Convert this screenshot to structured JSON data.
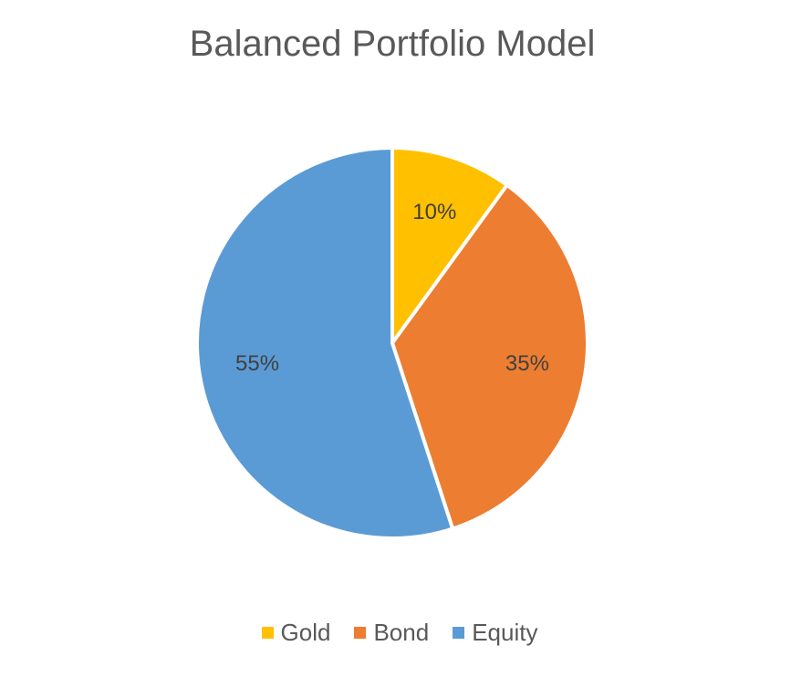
{
  "chart_data": {
    "type": "pie",
    "title": "Balanced Portfolio Model",
    "slices": [
      {
        "label": "Gold",
        "value": 10,
        "display": "10%",
        "color": "#FFC000"
      },
      {
        "label": "Bond",
        "value": 35,
        "display": "35%",
        "color": "#ED7D31"
      },
      {
        "label": "Equity",
        "value": 55,
        "display": "55%",
        "color": "#5B9BD5"
      }
    ],
    "legend_position": "bottom"
  }
}
